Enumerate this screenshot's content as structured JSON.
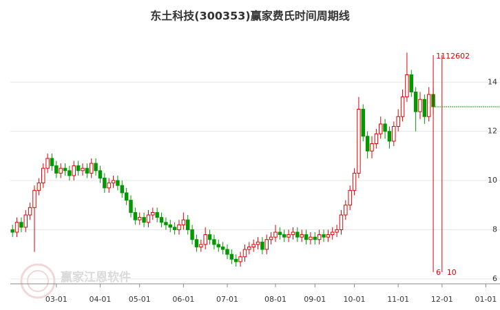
{
  "chart_data": {
    "type": "candlestick",
    "title": "东土科技(300353)赢家费氏时间周期线",
    "watermark": "赢家江恩软件",
    "up_color": "#e00000",
    "down_color": "#009900",
    "xlim": [
      -0.5,
      109.5
    ],
    "ylim": [
      5.8,
      15.8
    ],
    "xticks": [
      {
        "value": 10,
        "label": "03-01"
      },
      {
        "value": 20,
        "label": "04-01"
      },
      {
        "value": 29,
        "label": "05-01"
      },
      {
        "value": 39,
        "label": "06-01"
      },
      {
        "value": 49,
        "label": "07-01"
      },
      {
        "value": 60,
        "label": "08-01"
      },
      {
        "value": 69,
        "label": "09-01"
      },
      {
        "value": 78,
        "label": "10-01"
      },
      {
        "value": 88,
        "label": "11-01"
      },
      {
        "value": 98,
        "label": "12-01"
      },
      {
        "value": 108,
        "label": "01-01"
      }
    ],
    "yticks": [
      6,
      8,
      10,
      12,
      14
    ],
    "grid": true,
    "open": [
      8.0,
      7.9,
      8.3,
      8.1,
      8.6,
      8.9,
      9.6,
      9.9,
      10.5,
      10.9,
      10.6,
      10.3,
      10.5,
      10.4,
      10.2,
      10.6,
      10.4,
      10.5,
      10.3,
      10.7,
      10.4,
      10.1,
      9.7,
      9.9,
      10.0,
      9.8,
      9.5,
      9.2,
      8.7,
      8.4,
      8.5,
      8.3,
      8.6,
      8.7,
      8.5,
      8.3,
      8.2,
      8.1,
      8.0,
      8.2,
      8.4,
      8.0,
      7.6,
      7.3,
      7.4,
      7.8,
      7.6,
      7.4,
      7.3,
      7.2,
      7.0,
      6.8,
      6.7,
      6.9,
      7.2,
      7.3,
      7.4,
      7.5,
      7.2,
      7.6,
      7.7,
      7.9,
      7.8,
      7.7,
      7.8,
      7.9,
      7.7,
      7.8,
      7.6,
      7.7,
      7.6,
      7.8,
      7.7,
      7.8,
      7.9,
      8.0,
      8.6,
      9.0,
      9.6,
      10.3,
      12.9,
      11.8,
      11.2,
      11.5,
      11.9,
      12.3,
      12.0,
      11.6,
      12.2,
      12.6,
      13.4,
      14.3,
      13.6,
      12.8,
      13.3,
      12.6,
      13.5
    ],
    "high": [
      8.2,
      8.5,
      8.5,
      8.8,
      9.1,
      9.8,
      10.1,
      10.7,
      11.1,
      11.1,
      10.8,
      10.7,
      10.7,
      10.6,
      10.8,
      10.8,
      10.7,
      10.7,
      10.9,
      10.9,
      10.6,
      10.3,
      10.1,
      10.2,
      10.2,
      10.0,
      9.7,
      9.4,
      8.9,
      8.7,
      8.7,
      8.8,
      8.9,
      8.9,
      8.7,
      8.5,
      8.4,
      8.3,
      8.4,
      8.7,
      8.6,
      8.2,
      7.8,
      7.6,
      8.1,
      8.0,
      7.8,
      7.6,
      7.5,
      7.4,
      7.2,
      7.0,
      7.1,
      7.4,
      7.5,
      7.6,
      7.7,
      7.7,
      7.8,
      7.9,
      8.2,
      8.1,
      8.0,
      8.0,
      8.1,
      8.1,
      8.0,
      8.0,
      7.9,
      7.9,
      8.0,
      8.0,
      8.0,
      8.1,
      8.2,
      8.8,
      9.2,
      9.8,
      10.5,
      13.4,
      13.1,
      12.0,
      11.8,
      12.1,
      12.6,
      12.5,
      12.2,
      12.4,
      12.9,
      13.7,
      15.2,
      14.5,
      13.8,
      13.6,
      13.5,
      13.8,
      13.8
    ],
    "low": [
      7.7,
      7.7,
      7.9,
      7.9,
      8.4,
      7.1,
      9.4,
      9.7,
      10.3,
      10.4,
      10.1,
      10.1,
      10.2,
      10.0,
      10.0,
      10.2,
      10.2,
      10.1,
      10.1,
      10.2,
      9.9,
      9.5,
      9.5,
      9.7,
      9.6,
      9.3,
      9.0,
      8.5,
      8.2,
      8.2,
      8.1,
      8.1,
      8.4,
      8.3,
      8.1,
      8.0,
      7.9,
      7.8,
      7.8,
      8.0,
      7.8,
      7.4,
      7.1,
      7.1,
      7.2,
      7.4,
      7.2,
      7.1,
      7.0,
      6.8,
      6.6,
      6.5,
      6.5,
      6.7,
      7.0,
      7.1,
      7.2,
      7.0,
      7.0,
      7.4,
      7.5,
      7.6,
      7.5,
      7.5,
      7.6,
      7.5,
      7.5,
      7.4,
      7.4,
      7.4,
      7.4,
      7.5,
      7.5,
      7.6,
      7.7,
      7.8,
      8.4,
      8.8,
      9.4,
      10.1,
      11.6,
      10.9,
      10.9,
      11.3,
      11.7,
      11.7,
      11.3,
      11.4,
      12.0,
      12.4,
      13.2,
      13.4,
      12.0,
      12.5,
      12.3,
      12.4,
      12.7
    ],
    "close": [
      7.9,
      8.3,
      8.1,
      8.6,
      8.9,
      9.6,
      9.9,
      10.5,
      10.9,
      10.6,
      10.3,
      10.5,
      10.4,
      10.2,
      10.6,
      10.4,
      10.5,
      10.3,
      10.7,
      10.4,
      10.1,
      9.7,
      9.9,
      10.0,
      9.8,
      9.5,
      9.2,
      8.7,
      8.4,
      8.5,
      8.3,
      8.6,
      8.7,
      8.5,
      8.3,
      8.2,
      8.1,
      8.0,
      8.2,
      8.4,
      8.0,
      7.6,
      7.3,
      7.4,
      7.8,
      7.6,
      7.4,
      7.3,
      7.2,
      7.0,
      6.8,
      6.7,
      6.9,
      7.2,
      7.3,
      7.4,
      7.5,
      7.2,
      7.6,
      7.7,
      7.9,
      7.8,
      7.7,
      7.8,
      7.9,
      7.7,
      7.8,
      7.6,
      7.7,
      7.6,
      7.8,
      7.7,
      7.8,
      7.9,
      8.0,
      8.6,
      9.0,
      9.6,
      10.3,
      12.9,
      11.8,
      11.2,
      11.5,
      11.9,
      12.3,
      12.0,
      11.6,
      12.2,
      12.6,
      13.4,
      14.3,
      13.6,
      12.8,
      13.3,
      12.6,
      13.5,
      13.0
    ],
    "cycle_top_label": "1112602",
    "cycle_lines": [
      {
        "x": 96,
        "label": "6"
      },
      {
        "x": 98,
        "label": "10"
      }
    ]
  }
}
